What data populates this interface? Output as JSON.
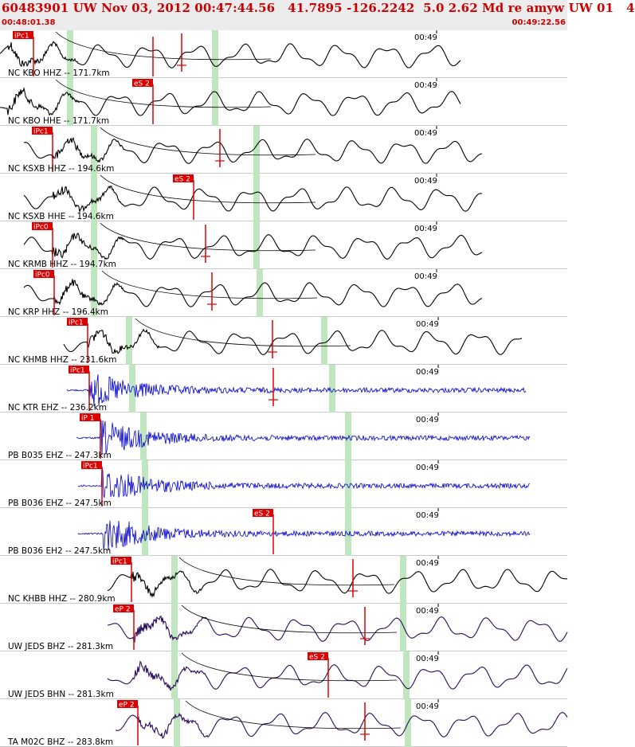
{
  "header": {
    "title": "60483901 UW Nov 03, 2012 00:47:44.56   41.7895 -126.2242  5.0 2.62 Md re amyw UW 01   4",
    "start_time": "00:48:01.38",
    "end_time": "00:49:22.56"
  },
  "colors": {
    "header_bg": "#ececec",
    "header_text": "#cc0000",
    "pick": "#dd0000",
    "window": "#bfe6bf",
    "trace_black": "#000000",
    "trace_blue": "#0000cc",
    "trace_purple": "#2a0a5a"
  },
  "traces": [
    {
      "label": "NC KBO HHZ -- 171.7km",
      "time_label": "00:49",
      "pick_label": "iPc1",
      "color": "black",
      "style": "long"
    },
    {
      "label": "NC KBO HHE -- 171.7km",
      "time_label": "00:49",
      "pick_label": "eS 2",
      "color": "black",
      "style": "long"
    },
    {
      "label": "NC KSXB HHZ -- 194.6km",
      "time_label": "00:49",
      "pick_label": "iPc1",
      "color": "black",
      "style": "long"
    },
    {
      "label": "NC KSXB HHE -- 194.6km",
      "time_label": "00:49",
      "pick_label": "eS 2",
      "color": "black",
      "style": "long"
    },
    {
      "label": "NC KRMB HHZ -- 194.7km",
      "time_label": "00:49",
      "pick_label": "iPc0",
      "color": "black",
      "style": "long"
    },
    {
      "label": "NC KRP HHZ -- 196.4km",
      "time_label": "00:49",
      "pick_label": "iPc0",
      "color": "black",
      "style": "long"
    },
    {
      "label": "NC KHMB HHZ -- 231.6km",
      "time_label": "00:49",
      "pick_label": "iPc1",
      "color": "black",
      "style": "long"
    },
    {
      "label": "NC KTR EHZ -- 236.2km",
      "time_label": "00:49",
      "pick_label": "iPc1",
      "color": "blue",
      "style": "burst"
    },
    {
      "label": "PB B035 EHZ -- 247.3km",
      "time_label": "00:49",
      "pick_label": "iP 1",
      "color": "blue",
      "style": "burst"
    },
    {
      "label": "PB B036 EHZ -- 247.5km",
      "time_label": "00:49",
      "pick_label": "iPc1",
      "color": "blue",
      "style": "burst"
    },
    {
      "label": "PB B036 EH2 -- 247.5km",
      "time_label": "00:49",
      "pick_label": "eS 2",
      "color": "blue",
      "style": "burst"
    },
    {
      "label": "NC KHBB HHZ -- 280.9km",
      "time_label": "00:49",
      "pick_label": "iPc1",
      "color": "black",
      "style": "long"
    },
    {
      "label": "UW JEDS BHZ -- 281.3km",
      "time_label": "00:49",
      "pick_label": "eP 2",
      "color": "purple",
      "style": "long"
    },
    {
      "label": "UW JEDS BHN -- 281.3km",
      "time_label": "00:49",
      "pick_label": "eS 2",
      "color": "purple",
      "style": "long"
    },
    {
      "label": "TA M02C BHZ -- 283.8km",
      "time_label": "00:49",
      "pick_label": "eP 2",
      "color": "purple",
      "style": "long"
    }
  ]
}
